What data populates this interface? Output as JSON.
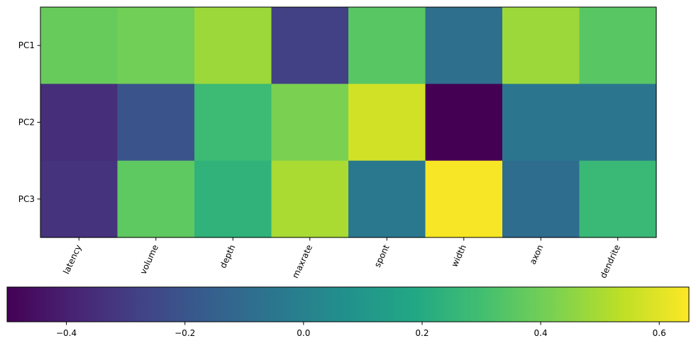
{
  "chart_data": {
    "type": "heatmap",
    "colormap": "viridis",
    "x_categories": [
      "latency",
      "volume",
      "depth",
      "maxrate",
      "spont",
      "width",
      "axon",
      "dendrite"
    ],
    "y_categories": [
      "PC1",
      "PC2",
      "PC3"
    ],
    "values": [
      [
        0.38,
        0.4,
        0.48,
        -0.28,
        0.35,
        -0.08,
        0.48,
        0.35
      ],
      [
        -0.35,
        -0.2,
        0.28,
        0.42,
        0.57,
        -0.5,
        -0.05,
        -0.05
      ],
      [
        -0.33,
        0.36,
        0.24,
        0.5,
        -0.04,
        0.64,
        -0.09,
        0.27
      ]
    ],
    "x_tick_rotation_deg": 65,
    "colorbar": {
      "orientation": "horizontal",
      "placement": "bottom",
      "vmin": -0.5,
      "vmax": 0.65,
      "ticks": [
        -0.4,
        -0.2,
        0.0,
        0.2,
        0.4,
        0.6
      ],
      "tick_labels": [
        "−0.4",
        "−0.2",
        "0.0",
        "0.2",
        "0.4",
        "0.6"
      ]
    },
    "title": "",
    "xlabel": "",
    "ylabel": ""
  }
}
